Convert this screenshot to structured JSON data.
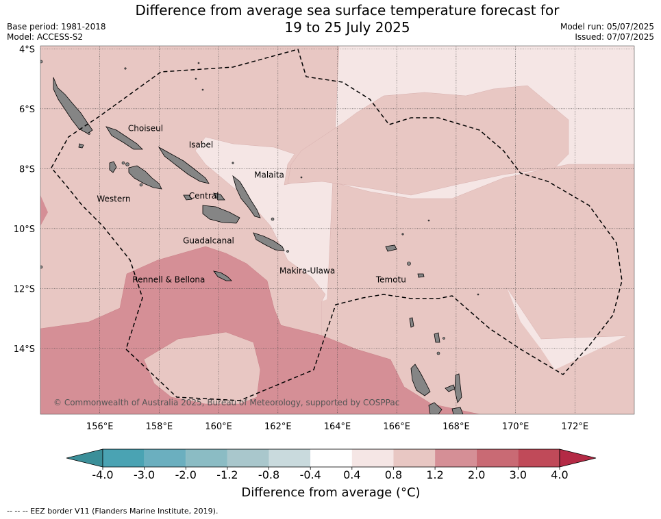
{
  "header": {
    "title_line1": "Difference from average sea surface temperature forecast for",
    "title_line2": "19 to 25 July 2025",
    "base_period": "Base period: 1981-2018",
    "model": "Model: ACCESS-S2",
    "model_run": "Model run: 05/07/2025",
    "issued": "Issued: 07/07/2025"
  },
  "map": {
    "lon_range": [
      154.0,
      174.0
    ],
    "lat_range": [
      -16.2,
      -3.9
    ],
    "lon_ticks": [
      {
        "value": 156,
        "label": "156°E"
      },
      {
        "value": 158,
        "label": "158°E"
      },
      {
        "value": 160,
        "label": "160°E"
      },
      {
        "value": 162,
        "label": "162°E"
      },
      {
        "value": 164,
        "label": "164°E"
      },
      {
        "value": 166,
        "label": "166°E"
      },
      {
        "value": 168,
        "label": "168°E"
      },
      {
        "value": 170,
        "label": "170°E"
      },
      {
        "value": 172,
        "label": "172°E"
      }
    ],
    "lat_ticks": [
      {
        "value": -4,
        "label": "4°S"
      },
      {
        "value": -6,
        "label": "6°S"
      },
      {
        "value": -8,
        "label": "8°S"
      },
      {
        "value": -10,
        "label": "10°S"
      },
      {
        "value": -12,
        "label": "12°S"
      },
      {
        "value": -14,
        "label": "14°S"
      }
    ],
    "gridlines": true,
    "provinces": [
      {
        "name": "Choiseul",
        "lon": 156.95,
        "lat": -6.75
      },
      {
        "name": "Isabel",
        "lon": 159.0,
        "lat": -7.3
      },
      {
        "name": "Malaita",
        "lon": 161.2,
        "lat": -8.3
      },
      {
        "name": "Western",
        "lon": 155.9,
        "lat": -9.1
      },
      {
        "name": "Central",
        "lon": 159.0,
        "lat": -9.0
      },
      {
        "name": "Guadalcanal",
        "lon": 158.8,
        "lat": -10.5
      },
      {
        "name": "Makira-Ulawa",
        "lon": 162.05,
        "lat": -11.5
      },
      {
        "name": "Temotu",
        "lon": 165.3,
        "lat": -11.8
      },
      {
        "name": "Rennell & Bellona",
        "lon": 157.1,
        "lat": -11.8
      }
    ],
    "copyright": "© Commonwealth of Australia 2025, Bureau of Meteorology, supported by COSPPac",
    "colors": {
      "band_0p4_0p8": "#f5e6e5",
      "band_0p8_1p2": "#e8c7c3",
      "band_1p2_2p0": "#d58f96",
      "land": "#858585",
      "eez": "#000000"
    }
  },
  "colorbar": {
    "title": "Difference from average (°C)",
    "ticks": [
      "-4.0",
      "-3.0",
      "-2.0",
      "-1.2",
      "-0.8",
      "-0.4",
      "0.4",
      "0.8",
      "1.2",
      "2.0",
      "3.0",
      "4.0"
    ],
    "colors": [
      "#4aa3b3",
      "#6bafbf",
      "#8bbcc4",
      "#a9c7cc",
      "#c9dadd",
      "#ffffff",
      "#f5e6e5",
      "#e8c7c3",
      "#d58f96",
      "#c96a74",
      "#c04a59"
    ],
    "under_color": "#3b8f99",
    "over_color": "#b42a45"
  },
  "footnote": "--  --  -- EEZ border V11 (Flanders Marine Institute, 2019)."
}
